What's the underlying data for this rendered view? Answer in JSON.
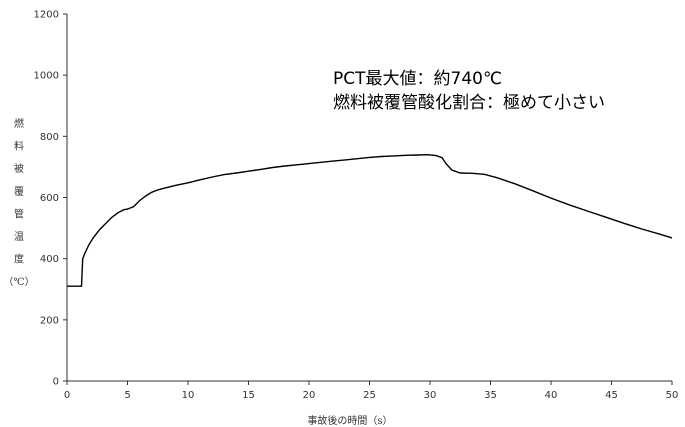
{
  "chart_data": {
    "type": "line",
    "title": "",
    "xlabel": "事故後の時間（s）",
    "ylabel_chars": [
      "燃",
      "料",
      "被",
      "覆",
      "管",
      "温",
      "度",
      "（℃）"
    ],
    "xlim": [
      0,
      50
    ],
    "ylim": [
      0,
      1200
    ],
    "xticks": [
      0,
      5,
      10,
      15,
      20,
      25,
      30,
      35,
      40,
      45,
      50
    ],
    "yticks": [
      0,
      200,
      400,
      600,
      800,
      1000,
      1200
    ],
    "grid": false,
    "legend": "none",
    "line_color": "#000000",
    "annotations": [
      "PCT最大値：約740℃",
      "燃料被覆管酸化割合：極めて小さい"
    ],
    "series": [
      {
        "points": [
          [
            0,
            310
          ],
          [
            1.2,
            310
          ],
          [
            1.3,
            400
          ],
          [
            1.5,
            420
          ],
          [
            1.8,
            445
          ],
          [
            2.2,
            470
          ],
          [
            2.7,
            495
          ],
          [
            3.2,
            515
          ],
          [
            3.7,
            535
          ],
          [
            4.2,
            550
          ],
          [
            4.7,
            560
          ],
          [
            5.0,
            562
          ],
          [
            5.5,
            570
          ],
          [
            6.0,
            590
          ],
          [
            6.5,
            605
          ],
          [
            7.0,
            617
          ],
          [
            7.5,
            625
          ],
          [
            8.0,
            630
          ],
          [
            9.0,
            640
          ],
          [
            10.0,
            648
          ],
          [
            11.0,
            658
          ],
          [
            12.0,
            667
          ],
          [
            13.0,
            675
          ],
          [
            14.0,
            680
          ],
          [
            15.0,
            686
          ],
          [
            16.0,
            692
          ],
          [
            17.0,
            698
          ],
          [
            18.0,
            703
          ],
          [
            19.0,
            707
          ],
          [
            20.0,
            711
          ],
          [
            21.0,
            715
          ],
          [
            22.0,
            719
          ],
          [
            23.0,
            723
          ],
          [
            24.0,
            727
          ],
          [
            25.0,
            731
          ],
          [
            26.0,
            734
          ],
          [
            27.0,
            736
          ],
          [
            28.0,
            738
          ],
          [
            29.0,
            739
          ],
          [
            29.8,
            740
          ],
          [
            30.5,
            737
          ],
          [
            31.0,
            730
          ],
          [
            31.3,
            712
          ],
          [
            31.8,
            690
          ],
          [
            32.5,
            680
          ],
          [
            33.5,
            679
          ],
          [
            34.5,
            676
          ],
          [
            35.5,
            665
          ],
          [
            37.0,
            645
          ],
          [
            38.5,
            622
          ],
          [
            40.0,
            598
          ],
          [
            41.5,
            576
          ],
          [
            43.0,
            556
          ],
          [
            44.5,
            536
          ],
          [
            46.0,
            516
          ],
          [
            47.5,
            497
          ],
          [
            49.0,
            480
          ],
          [
            50.0,
            468
          ]
        ]
      }
    ]
  }
}
